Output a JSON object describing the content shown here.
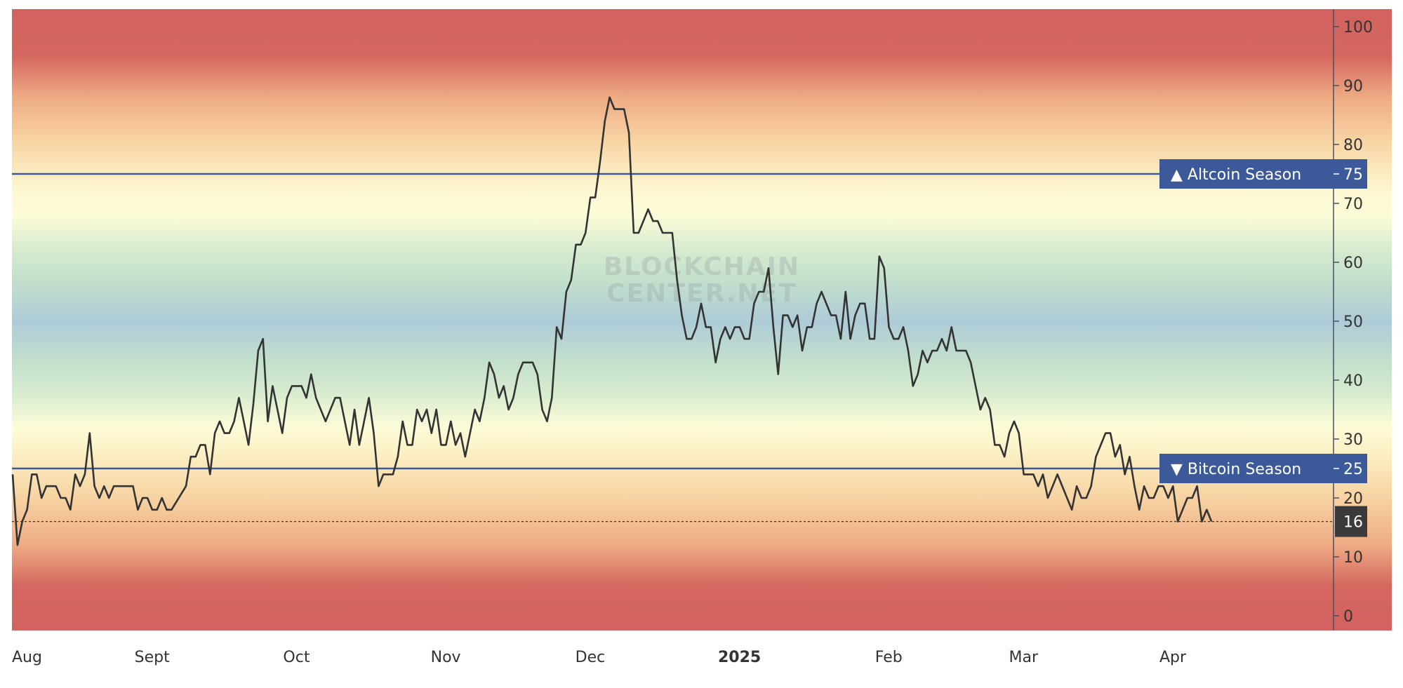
{
  "watermark": {
    "line1": "BLOCKCHAIN",
    "line2": "CENTER.NET"
  },
  "chart_data": {
    "type": "line",
    "title": "",
    "xlabel": "",
    "ylabel": "",
    "ylim": [
      -3,
      103
    ],
    "yticks": [
      "0",
      "10",
      "20",
      "30",
      "40",
      "50",
      "60",
      "70",
      "80",
      "90",
      "100"
    ],
    "xticks": [
      {
        "date": "2024-08-01",
        "label": "Aug"
      },
      {
        "date": "2024-09-01",
        "label": "Sept"
      },
      {
        "date": "2024-10-01",
        "label": "Oct"
      },
      {
        "date": "2024-11-01",
        "label": "Nov"
      },
      {
        "date": "2024-12-01",
        "label": "Dec"
      },
      {
        "date": "2025-01-01",
        "label": "2025",
        "bold": true
      },
      {
        "date": "2025-02-01",
        "label": "Feb"
      },
      {
        "date": "2025-03-01",
        "label": "Mar"
      },
      {
        "date": "2025-04-01",
        "label": "Apr"
      }
    ],
    "axis_position": "right",
    "grid": false,
    "background": "vertical color gradient: red (0, 100), peach (20, 80), pale yellow (30, 70), green (40, 60), blue (50)",
    "reference_lines": [
      {
        "value": 75,
        "label": "▲ Altcoin Season",
        "value_label": "75",
        "color": "#3c5a99"
      },
      {
        "value": 25,
        "label": "▼ Bitcoin Season",
        "value_label": "25",
        "color": "#3c5a99"
      }
    ],
    "current_value": {
      "value": 16,
      "label": "16",
      "color": "#3a3a3a"
    },
    "series": [
      {
        "color": "#333333",
        "points": [
          [
            "2024-08-01",
            24
          ],
          [
            "2024-08-02",
            12
          ],
          [
            "2024-08-03",
            16
          ],
          [
            "2024-08-04",
            18
          ],
          [
            "2024-08-05",
            24
          ],
          [
            "2024-08-06",
            24
          ],
          [
            "2024-08-07",
            20
          ],
          [
            "2024-08-08",
            22
          ],
          [
            "2024-08-10",
            22
          ],
          [
            "2024-08-11",
            20
          ],
          [
            "2024-08-12",
            20
          ],
          [
            "2024-08-13",
            18
          ],
          [
            "2024-08-14",
            24
          ],
          [
            "2024-08-15",
            22
          ],
          [
            "2024-08-16",
            24
          ],
          [
            "2024-08-17",
            31
          ],
          [
            "2024-08-18",
            22
          ],
          [
            "2024-08-19",
            20
          ],
          [
            "2024-08-20",
            22
          ],
          [
            "2024-08-21",
            20
          ],
          [
            "2024-08-22",
            22
          ],
          [
            "2024-08-26",
            22
          ],
          [
            "2024-08-27",
            18
          ],
          [
            "2024-08-28",
            20
          ],
          [
            "2024-08-29",
            20
          ],
          [
            "2024-08-30",
            18
          ],
          [
            "2024-08-31",
            18
          ],
          [
            "2024-09-01",
            20
          ],
          [
            "2024-09-02",
            18
          ],
          [
            "2024-09-03",
            18
          ],
          [
            "2024-09-06",
            22
          ],
          [
            "2024-09-07",
            27
          ],
          [
            "2024-09-08",
            27
          ],
          [
            "2024-09-09",
            29
          ],
          [
            "2024-09-10",
            29
          ],
          [
            "2024-09-11",
            24
          ],
          [
            "2024-09-12",
            31
          ],
          [
            "2024-09-13",
            33
          ],
          [
            "2024-09-14",
            31
          ],
          [
            "2024-09-15",
            31
          ],
          [
            "2024-09-16",
            33
          ],
          [
            "2024-09-17",
            37
          ],
          [
            "2024-09-18",
            33
          ],
          [
            "2024-09-19",
            29
          ],
          [
            "2024-09-20",
            36
          ],
          [
            "2024-09-21",
            45
          ],
          [
            "2024-09-22",
            47
          ],
          [
            "2024-09-23",
            33
          ],
          [
            "2024-09-24",
            39
          ],
          [
            "2024-09-25",
            35
          ],
          [
            "2024-09-26",
            31
          ],
          [
            "2024-09-27",
            37
          ],
          [
            "2024-09-28",
            39
          ],
          [
            "2024-09-30",
            39
          ],
          [
            "2024-10-01",
            37
          ],
          [
            "2024-10-02",
            41
          ],
          [
            "2024-10-03",
            37
          ],
          [
            "2024-10-04",
            35
          ],
          [
            "2024-10-05",
            33
          ],
          [
            "2024-10-06",
            35
          ],
          [
            "2024-10-07",
            37
          ],
          [
            "2024-10-08",
            37
          ],
          [
            "2024-10-09",
            33
          ],
          [
            "2024-10-10",
            29
          ],
          [
            "2024-10-11",
            35
          ],
          [
            "2024-10-12",
            29
          ],
          [
            "2024-10-13",
            33
          ],
          [
            "2024-10-14",
            37
          ],
          [
            "2024-10-15",
            31
          ],
          [
            "2024-10-16",
            22
          ],
          [
            "2024-10-17",
            24
          ],
          [
            "2024-10-18",
            24
          ],
          [
            "2024-10-19",
            24
          ],
          [
            "2024-10-20",
            27
          ],
          [
            "2024-10-21",
            33
          ],
          [
            "2024-10-22",
            29
          ],
          [
            "2024-10-23",
            29
          ],
          [
            "2024-10-24",
            35
          ],
          [
            "2024-10-25",
            33
          ],
          [
            "2024-10-26",
            35
          ],
          [
            "2024-10-27",
            31
          ],
          [
            "2024-10-28",
            35
          ],
          [
            "2024-10-29",
            29
          ],
          [
            "2024-10-30",
            29
          ],
          [
            "2024-10-31",
            33
          ],
          [
            "2024-11-01",
            29
          ],
          [
            "2024-11-02",
            31
          ],
          [
            "2024-11-03",
            27
          ],
          [
            "2024-11-04",
            31
          ],
          [
            "2024-11-05",
            35
          ],
          [
            "2024-11-06",
            33
          ],
          [
            "2024-11-07",
            37
          ],
          [
            "2024-11-08",
            43
          ],
          [
            "2024-11-09",
            41
          ],
          [
            "2024-11-10",
            37
          ],
          [
            "2024-11-11",
            39
          ],
          [
            "2024-11-12",
            35
          ],
          [
            "2024-11-13",
            37
          ],
          [
            "2024-11-14",
            41
          ],
          [
            "2024-11-15",
            43
          ],
          [
            "2024-11-17",
            43
          ],
          [
            "2024-11-18",
            41
          ],
          [
            "2024-11-19",
            35
          ],
          [
            "2024-11-20",
            33
          ],
          [
            "2024-11-21",
            37
          ],
          [
            "2024-11-22",
            49
          ],
          [
            "2024-11-23",
            47
          ],
          [
            "2024-11-24",
            55
          ],
          [
            "2024-11-25",
            57
          ],
          [
            "2024-11-26",
            63
          ],
          [
            "2024-11-27",
            63
          ],
          [
            "2024-11-28",
            65
          ],
          [
            "2024-11-29",
            71
          ],
          [
            "2024-11-30",
            71
          ],
          [
            "2024-12-01",
            77
          ],
          [
            "2024-12-02",
            84
          ],
          [
            "2024-12-03",
            88
          ],
          [
            "2024-12-04",
            86
          ],
          [
            "2024-12-06",
            86
          ],
          [
            "2024-12-07",
            82
          ],
          [
            "2024-12-08",
            65
          ],
          [
            "2024-12-09",
            65
          ],
          [
            "2024-12-10",
            67
          ],
          [
            "2024-12-11",
            69
          ],
          [
            "2024-12-12",
            67
          ],
          [
            "2024-12-13",
            67
          ],
          [
            "2024-12-14",
            65
          ],
          [
            "2024-12-16",
            65
          ],
          [
            "2024-12-17",
            57
          ],
          [
            "2024-12-18",
            51
          ],
          [
            "2024-12-19",
            47
          ],
          [
            "2024-12-20",
            47
          ],
          [
            "2024-12-21",
            49
          ],
          [
            "2024-12-22",
            53
          ],
          [
            "2024-12-23",
            49
          ],
          [
            "2024-12-24",
            49
          ],
          [
            "2024-12-25",
            43
          ],
          [
            "2024-12-26",
            47
          ],
          [
            "2024-12-27",
            49
          ],
          [
            "2024-12-28",
            47
          ],
          [
            "2024-12-29",
            49
          ],
          [
            "2024-12-30",
            49
          ],
          [
            "2024-12-31",
            47
          ],
          [
            "2025-01-01",
            47
          ],
          [
            "2025-01-02",
            53
          ],
          [
            "2025-01-03",
            55
          ],
          [
            "2025-01-04",
            55
          ],
          [
            "2025-01-05",
            59
          ],
          [
            "2025-01-06",
            49
          ],
          [
            "2025-01-07",
            41
          ],
          [
            "2025-01-08",
            51
          ],
          [
            "2025-01-09",
            51
          ],
          [
            "2025-01-10",
            49
          ],
          [
            "2025-01-11",
            51
          ],
          [
            "2025-01-12",
            45
          ],
          [
            "2025-01-13",
            49
          ],
          [
            "2025-01-14",
            49
          ],
          [
            "2025-01-15",
            53
          ],
          [
            "2025-01-16",
            55
          ],
          [
            "2025-01-17",
            53
          ],
          [
            "2025-01-18",
            51
          ],
          [
            "2025-01-19",
            51
          ],
          [
            "2025-01-20",
            47
          ],
          [
            "2025-01-21",
            55
          ],
          [
            "2025-01-22",
            47
          ],
          [
            "2025-01-23",
            51
          ],
          [
            "2025-01-24",
            53
          ],
          [
            "2025-01-25",
            53
          ],
          [
            "2025-01-26",
            47
          ],
          [
            "2025-01-27",
            47
          ],
          [
            "2025-01-28",
            61
          ],
          [
            "2025-01-29",
            59
          ],
          [
            "2025-01-30",
            49
          ],
          [
            "2025-01-31",
            47
          ],
          [
            "2025-02-01",
            47
          ],
          [
            "2025-02-02",
            49
          ],
          [
            "2025-02-03",
            45
          ],
          [
            "2025-02-04",
            39
          ],
          [
            "2025-02-05",
            41
          ],
          [
            "2025-02-06",
            45
          ],
          [
            "2025-02-07",
            43
          ],
          [
            "2025-02-08",
            45
          ],
          [
            "2025-02-09",
            45
          ],
          [
            "2025-02-10",
            47
          ],
          [
            "2025-02-11",
            45
          ],
          [
            "2025-02-12",
            49
          ],
          [
            "2025-02-13",
            45
          ],
          [
            "2025-02-15",
            45
          ],
          [
            "2025-02-16",
            43
          ],
          [
            "2025-02-17",
            39
          ],
          [
            "2025-02-18",
            35
          ],
          [
            "2025-02-19",
            37
          ],
          [
            "2025-02-20",
            35
          ],
          [
            "2025-02-21",
            29
          ],
          [
            "2025-02-22",
            29
          ],
          [
            "2025-02-23",
            27
          ],
          [
            "2025-02-24",
            31
          ],
          [
            "2025-02-25",
            33
          ],
          [
            "2025-02-26",
            31
          ],
          [
            "2025-02-27",
            24
          ],
          [
            "2025-03-01",
            24
          ],
          [
            "2025-03-02",
            22
          ],
          [
            "2025-03-03",
            24
          ],
          [
            "2025-03-04",
            20
          ],
          [
            "2025-03-05",
            22
          ],
          [
            "2025-03-06",
            24
          ],
          [
            "2025-03-07",
            22
          ],
          [
            "2025-03-08",
            20
          ],
          [
            "2025-03-09",
            18
          ],
          [
            "2025-03-10",
            22
          ],
          [
            "2025-03-11",
            20
          ],
          [
            "2025-03-12",
            20
          ],
          [
            "2025-03-13",
            22
          ],
          [
            "2025-03-14",
            27
          ],
          [
            "2025-03-15",
            29
          ],
          [
            "2025-03-16",
            31
          ],
          [
            "2025-03-17",
            31
          ],
          [
            "2025-03-18",
            27
          ],
          [
            "2025-03-19",
            29
          ],
          [
            "2025-03-20",
            24
          ],
          [
            "2025-03-21",
            27
          ],
          [
            "2025-03-22",
            22
          ],
          [
            "2025-03-23",
            18
          ],
          [
            "2025-03-24",
            22
          ],
          [
            "2025-03-25",
            20
          ],
          [
            "2025-03-26",
            20
          ],
          [
            "2025-03-27",
            22
          ],
          [
            "2025-03-28",
            22
          ],
          [
            "2025-03-29",
            20
          ],
          [
            "2025-03-30",
            22
          ],
          [
            "2025-03-31",
            16
          ],
          [
            "2025-04-01",
            18
          ],
          [
            "2025-04-02",
            20
          ],
          [
            "2025-04-03",
            20
          ],
          [
            "2025-04-04",
            22
          ],
          [
            "2025-04-05",
            16
          ],
          [
            "2025-04-06",
            18
          ],
          [
            "2025-04-07",
            16
          ]
        ]
      }
    ]
  }
}
